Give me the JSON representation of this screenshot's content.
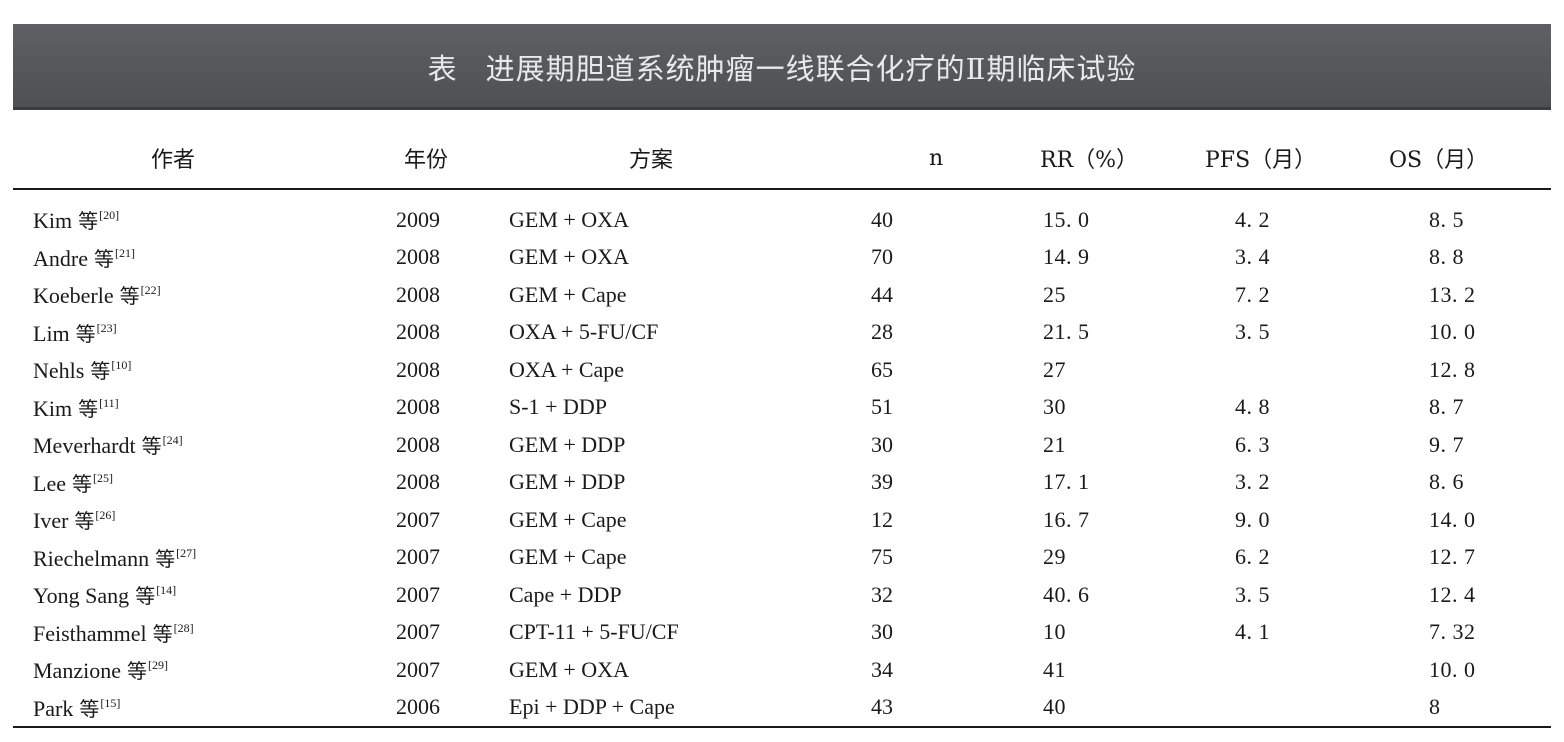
{
  "title": {
    "label": "表",
    "text": "进展期胆道系统肿瘤一线联合化疗的Ⅱ期临床试验"
  },
  "columns": [
    "作者",
    "年份",
    "方案",
    "n",
    "RR（%）",
    "PFS（月）",
    "OS（月）"
  ],
  "rows": [
    {
      "name": "Kim",
      "deng": "等",
      "ref": "[20]",
      "year": "2009",
      "regimen": "GEM + OXA",
      "n": "40",
      "rr": "15. 0",
      "pfs": "4. 2",
      "os": "8. 5"
    },
    {
      "name": "Andre",
      "deng": "等",
      "ref": "[21]",
      "year": "2008",
      "regimen": "GEM + OXA",
      "n": "70",
      "rr": "14. 9",
      "pfs": "3. 4",
      "os": "8. 8"
    },
    {
      "name": "Koeberle",
      "deng": "等",
      "ref": "[22]",
      "year": "2008",
      "regimen": "GEM + Cape",
      "n": "44",
      "rr": "25",
      "pfs": "7. 2",
      "os": "13. 2"
    },
    {
      "name": "Lim",
      "deng": "等",
      "ref": "[23]",
      "year": "2008",
      "regimen": "OXA + 5-FU/CF",
      "n": "28",
      "rr": "21. 5",
      "pfs": "3. 5",
      "os": "10. 0"
    },
    {
      "name": "Nehls",
      "deng": "等",
      "ref": "[10]",
      "year": "2008",
      "regimen": "OXA + Cape",
      "n": "65",
      "rr": "27",
      "pfs": "",
      "os": "12. 8"
    },
    {
      "name": "Kim",
      "deng": "等",
      "ref": "[11]",
      "year": "2008",
      "regimen": "S-1 + DDP",
      "n": "51",
      "rr": "30",
      "pfs": "4. 8",
      "os": "8. 7"
    },
    {
      "name": "Meverhardt",
      "deng": "等",
      "ref": "[24]",
      "year": "2008",
      "regimen": "GEM + DDP",
      "n": "30",
      "rr": "21",
      "pfs": "6. 3",
      "os": "9. 7"
    },
    {
      "name": "Lee",
      "deng": "等",
      "ref": "[25]",
      "year": "2008",
      "regimen": "GEM + DDP",
      "n": "39",
      "rr": "17. 1",
      "pfs": "3. 2",
      "os": "8. 6"
    },
    {
      "name": "Iver",
      "deng": "等",
      "ref": "[26]",
      "year": "2007",
      "regimen": "GEM + Cape",
      "n": "12",
      "rr": "16. 7",
      "pfs": "9. 0",
      "os": "14. 0"
    },
    {
      "name": "Riechelmann",
      "deng": "等",
      "ref": "[27]",
      "year": "2007",
      "regimen": "GEM + Cape",
      "n": "75",
      "rr": "29",
      "pfs": "6. 2",
      "os": "12. 7"
    },
    {
      "name": "Yong Sang",
      "deng": "等",
      "ref": "[14]",
      "year": "2007",
      "regimen": "Cape + DDP",
      "n": "32",
      "rr": "40. 6",
      "pfs": "3. 5",
      "os": "12. 4"
    },
    {
      "name": "Feisthammel",
      "deng": "等",
      "ref": "[28]",
      "year": "2007",
      "regimen": "CPT-11 + 5-FU/CF",
      "n": "30",
      "rr": "10",
      "pfs": "4. 1",
      "os": "7. 32"
    },
    {
      "name": "Manzione",
      "deng": "等",
      "ref": "[29]",
      "year": "2007",
      "regimen": "GEM + OXA",
      "n": "34",
      "rr": "41",
      "pfs": "",
      "os": "10. 0"
    },
    {
      "name": "Park",
      "deng": "等",
      "ref": "[15]",
      "year": "2006",
      "regimen": "Epi + DDP + Cape",
      "n": "43",
      "rr": "40",
      "pfs": "",
      "os": "8"
    }
  ],
  "colors": {
    "title_band": "#55575a",
    "title_text": "#e9e9e9",
    "rule": "#1a1a1a"
  }
}
